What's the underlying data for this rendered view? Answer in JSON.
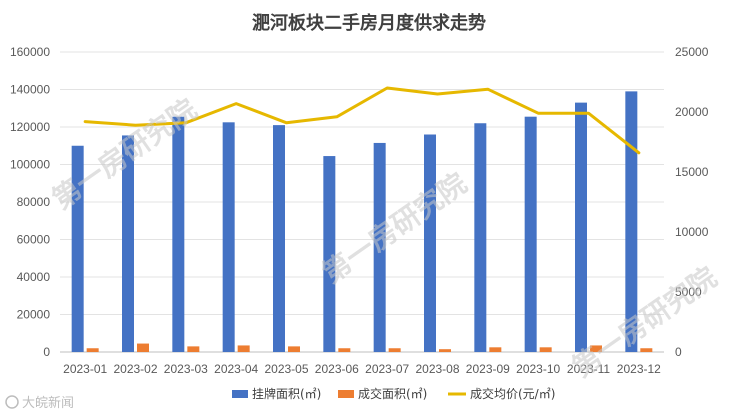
{
  "chart_data": {
    "type": "bar",
    "title": "淝河板块二手房月度供求走势",
    "categories": [
      "2023-01",
      "2023-02",
      "2023-03",
      "2023-04",
      "2023-05",
      "2023-06",
      "2023-07",
      "2023-08",
      "2023-09",
      "2023-10",
      "2023-11",
      "2023-12"
    ],
    "series": [
      {
        "name": "挂牌面积(㎡)",
        "type": "bar",
        "axis": "left",
        "color": "#4472C4",
        "values": [
          110000,
          115500,
          125500,
          122500,
          121000,
          104500,
          111500,
          116000,
          122000,
          125500,
          133000,
          139000
        ]
      },
      {
        "name": "成交面积(㎡)",
        "type": "bar",
        "axis": "left",
        "color": "#ED7D31",
        "values": [
          2000,
          4500,
          3000,
          3500,
          3000,
          2000,
          2000,
          1500,
          2500,
          2500,
          3500,
          2000
        ]
      },
      {
        "name": "成交均价(元/㎡)",
        "type": "line",
        "axis": "right",
        "color": "#E6B800",
        "values": [
          19200,
          18900,
          19100,
          20700,
          19100,
          19600,
          22000,
          21500,
          21900,
          19900,
          19900,
          16600
        ]
      }
    ],
    "left_axis": {
      "ylim": [
        0,
        160000
      ],
      "ticks": [
        0,
        20000,
        40000,
        60000,
        80000,
        100000,
        120000,
        140000,
        160000
      ]
    },
    "right_axis": {
      "ylim": [
        0,
        25000
      ],
      "ticks": [
        0,
        5000,
        10000,
        15000,
        20000,
        25000
      ]
    },
    "grid": true,
    "legend_position": "bottom"
  },
  "watermark": {
    "text": "第一房研究院"
  },
  "logo": {
    "text": "大皖新闻"
  }
}
